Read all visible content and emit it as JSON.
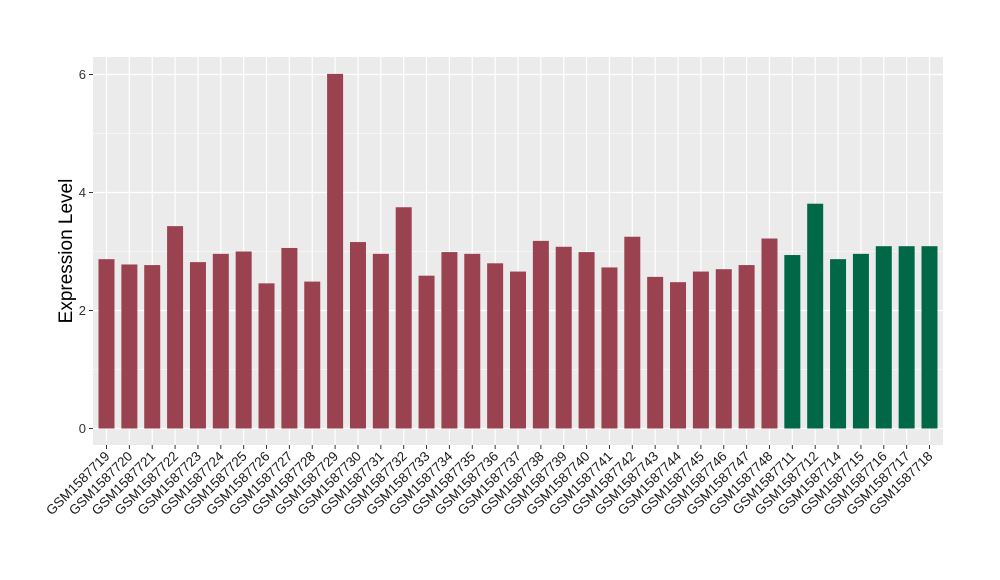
{
  "chart_data": {
    "type": "bar",
    "title": "",
    "xlabel": "",
    "ylabel": "Expression Level",
    "ylim": [
      -0.3,
      6.3
    ],
    "yticks": [
      0,
      2,
      4,
      6
    ],
    "grid": true,
    "legend": "none",
    "colors": {
      "group1": "#9B4250",
      "group2": "#006846",
      "panel_bg": "#EBEBEB",
      "grid": "#FFFFFF"
    },
    "categories": [
      "GSM1587719",
      "GSM1587720",
      "GSM1587721",
      "GSM1587722",
      "GSM1587723",
      "GSM1587724",
      "GSM1587725",
      "GSM1587726",
      "GSM1587727",
      "GSM1587728",
      "GSM1587729",
      "GSM1587730",
      "GSM1587731",
      "GSM1587732",
      "GSM1587733",
      "GSM1587734",
      "GSM1587735",
      "GSM1587736",
      "GSM1587737",
      "GSM1587738",
      "GSM1587739",
      "GSM1587740",
      "GSM1587741",
      "GSM1587742",
      "GSM1587743",
      "GSM1587744",
      "GSM1587745",
      "GSM1587746",
      "GSM1587747",
      "GSM1587748",
      "GSM1587711",
      "GSM1587712",
      "GSM1587714",
      "GSM1587715",
      "GSM1587716",
      "GSM1587717",
      "GSM1587718"
    ],
    "values": [
      2.87,
      2.78,
      2.77,
      3.43,
      2.82,
      2.96,
      3.0,
      2.46,
      3.06,
      2.49,
      6.01,
      3.16,
      2.96,
      3.75,
      2.59,
      2.99,
      2.96,
      2.8,
      2.66,
      3.18,
      3.08,
      2.99,
      2.73,
      3.25,
      2.57,
      2.48,
      2.66,
      2.7,
      2.77,
      3.22,
      2.94,
      3.81,
      2.87,
      2.96,
      3.09,
      3.09,
      3.09
    ],
    "groups": [
      "group1",
      "group1",
      "group1",
      "group1",
      "group1",
      "group1",
      "group1",
      "group1",
      "group1",
      "group1",
      "group1",
      "group1",
      "group1",
      "group1",
      "group1",
      "group1",
      "group1",
      "group1",
      "group1",
      "group1",
      "group1",
      "group1",
      "group1",
      "group1",
      "group1",
      "group1",
      "group1",
      "group1",
      "group1",
      "group1",
      "group2",
      "group2",
      "group2",
      "group2",
      "group2",
      "group2",
      "group2"
    ]
  }
}
